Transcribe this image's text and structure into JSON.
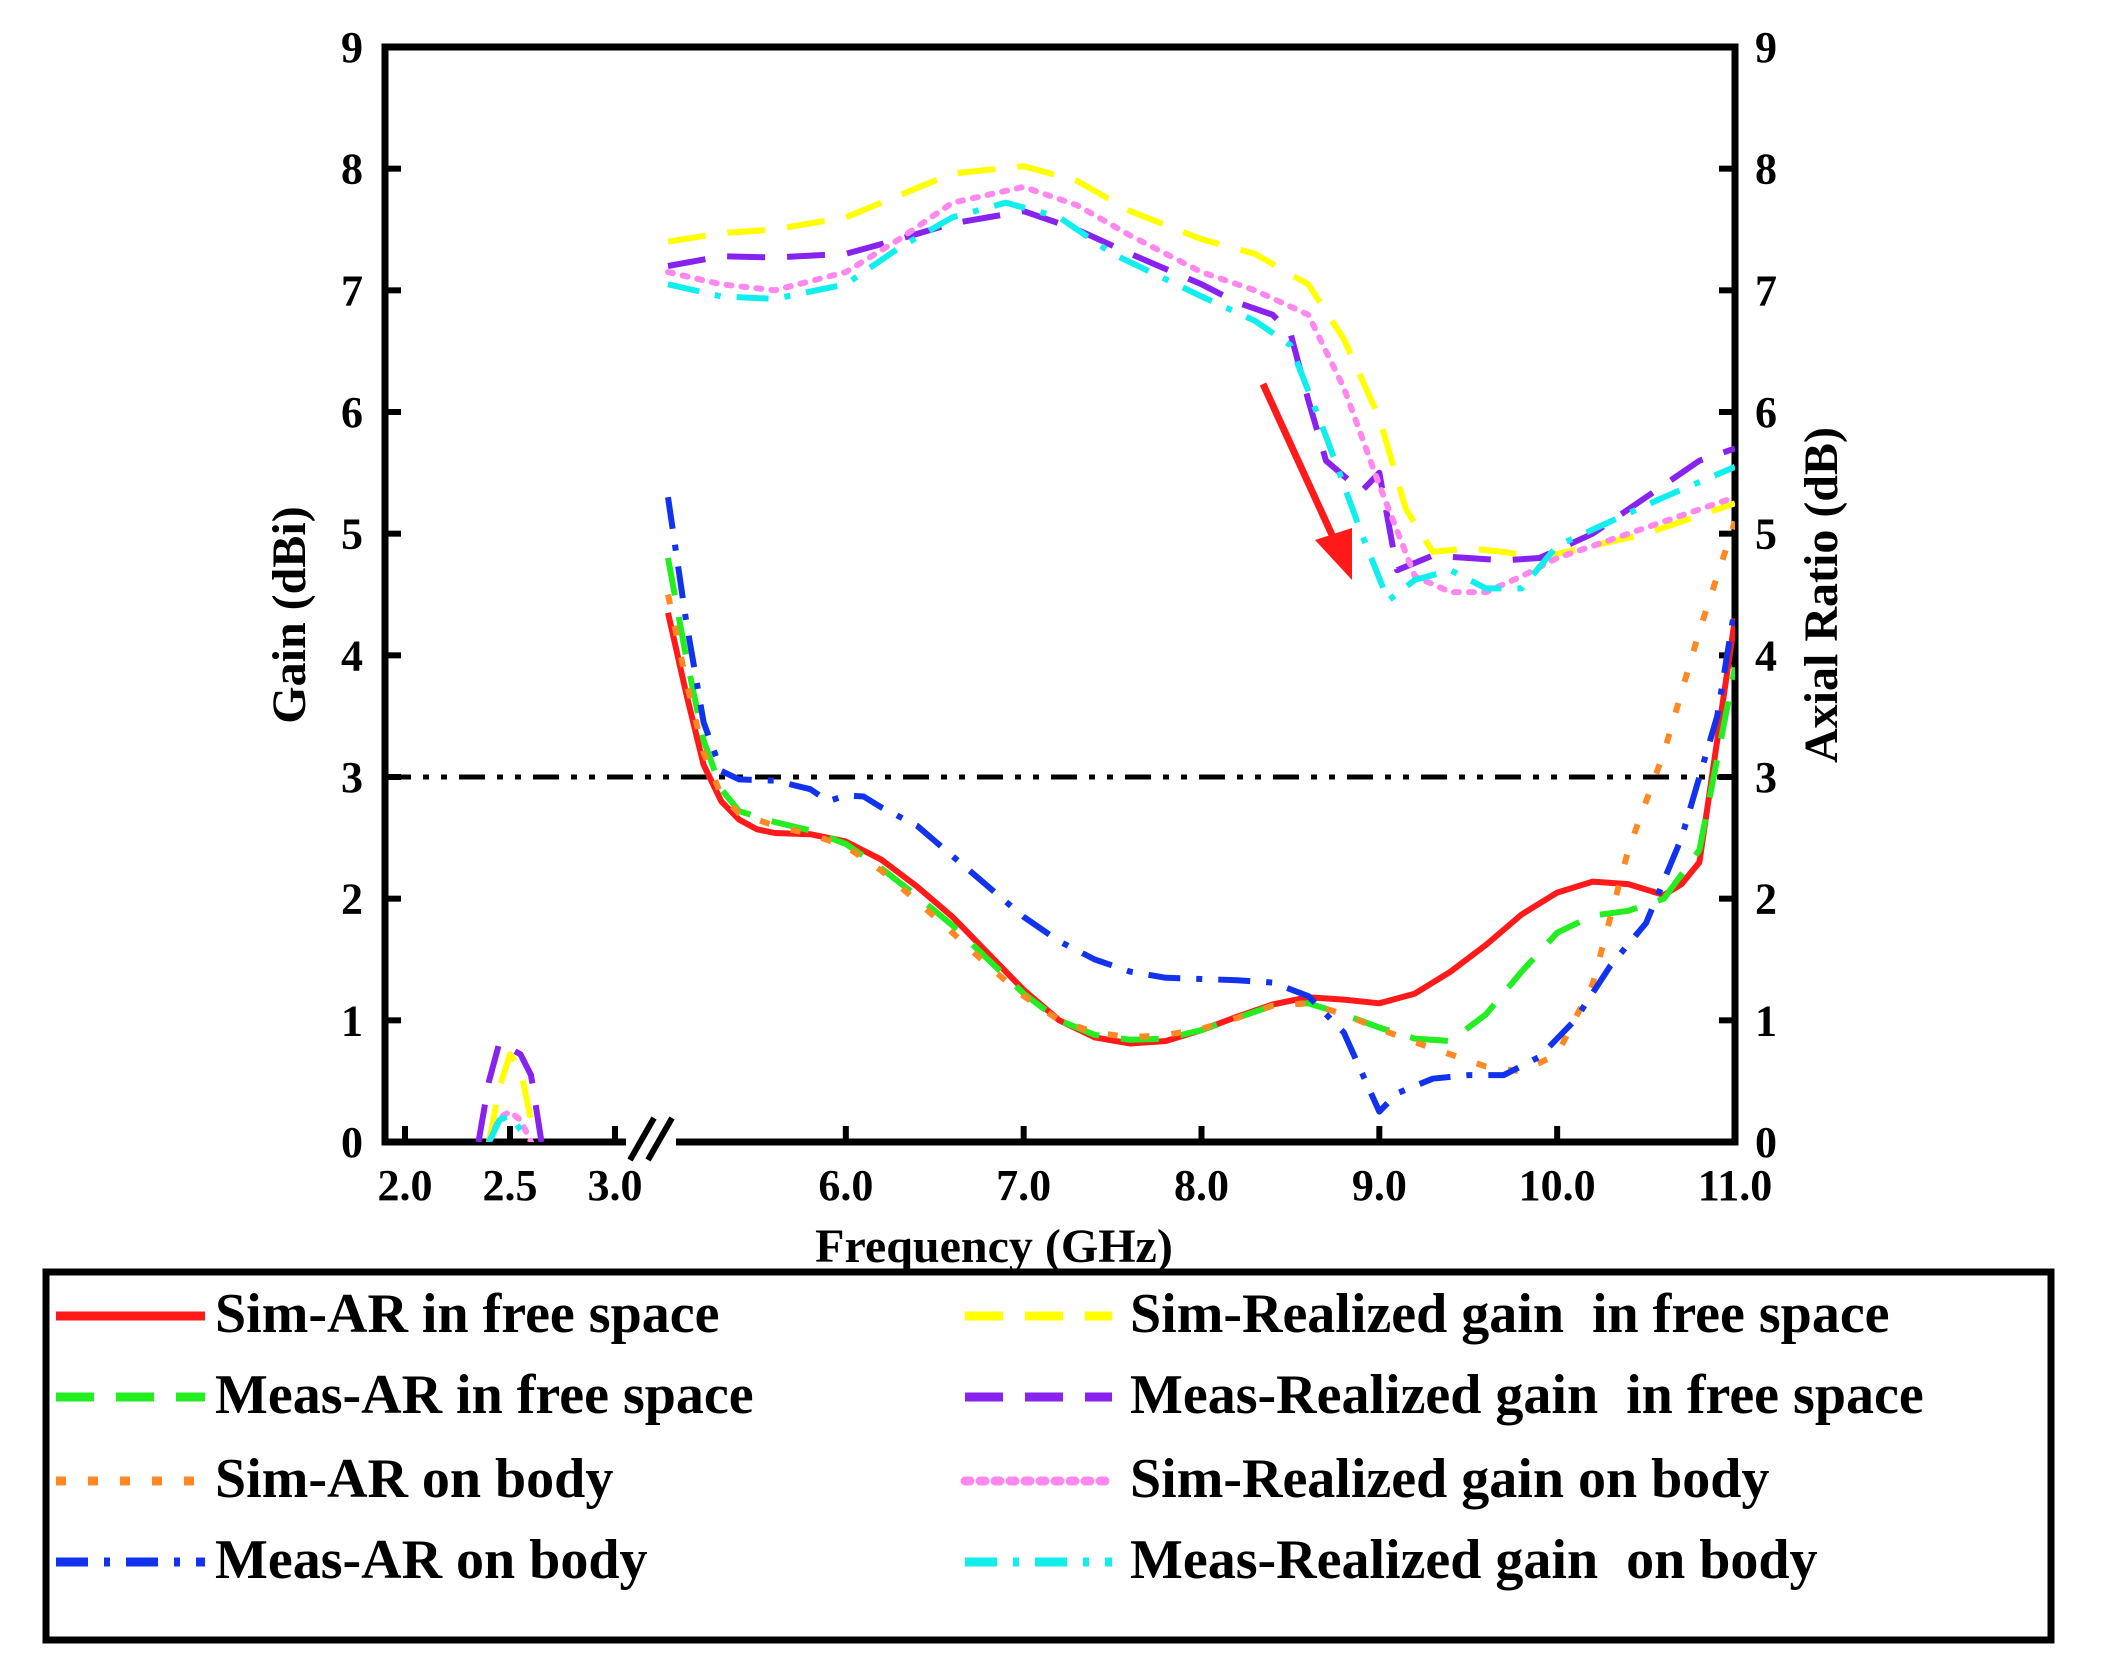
{
  "chart_data": {
    "type": "line",
    "x_axis": {
      "label": "Frequency (GHz)",
      "tick_labels": [
        "2.0",
        "2.5",
        "3.0",
        "6.0",
        "7.0",
        "8.0",
        "9.0",
        "10.0",
        "11.0"
      ],
      "tick_values": [
        2.0,
        2.5,
        3.0,
        6.0,
        7.0,
        8.0,
        9.0,
        10.0,
        11.0
      ],
      "axis_break": "between 3.0 and 5.0",
      "segments": [
        {
          "range": [
            2.0,
            3.0
          ]
        },
        {
          "range": [
            5.0,
            11.0
          ]
        }
      ]
    },
    "y_left": {
      "label": "Gain (dBi)",
      "range": [
        0,
        9
      ],
      "tick_labels": [
        "0",
        "1",
        "2",
        "3",
        "4",
        "5",
        "6",
        "7",
        "8",
        "9"
      ]
    },
    "y_right": {
      "label": "Axial Ratio (dB)",
      "range": [
        0,
        9
      ],
      "tick_labels": [
        "0",
        "1",
        "2",
        "3",
        "4",
        "5",
        "6",
        "7",
        "8",
        "9"
      ]
    },
    "reference_line": {
      "y": 3,
      "style": "dash-dot",
      "color": "#000000"
    },
    "annotation": {
      "type": "arrow",
      "color": "#ff1a1a",
      "meaning": "realized gain drop when placed on body"
    },
    "series": [
      {
        "name": "Sim-AR in free space",
        "axis": "right",
        "color": "#ff1a1a",
        "style": "solid",
        "width": 6,
        "points": [
          [
            5.0,
            4.35
          ],
          [
            5.1,
            3.7
          ],
          [
            5.2,
            3.1
          ],
          [
            5.3,
            2.8
          ],
          [
            5.4,
            2.65
          ],
          [
            5.5,
            2.57
          ],
          [
            5.6,
            2.54
          ],
          [
            5.8,
            2.53
          ],
          [
            6.0,
            2.47
          ],
          [
            6.2,
            2.32
          ],
          [
            6.4,
            2.1
          ],
          [
            6.6,
            1.85
          ],
          [
            6.8,
            1.55
          ],
          [
            7.0,
            1.25
          ],
          [
            7.2,
            1.0
          ],
          [
            7.4,
            0.86
          ],
          [
            7.6,
            0.81
          ],
          [
            7.8,
            0.83
          ],
          [
            8.0,
            0.92
          ],
          [
            8.2,
            1.03
          ],
          [
            8.4,
            1.13
          ],
          [
            8.6,
            1.19
          ],
          [
            8.8,
            1.17
          ],
          [
            9.0,
            1.14
          ],
          [
            9.2,
            1.22
          ],
          [
            9.4,
            1.4
          ],
          [
            9.6,
            1.62
          ],
          [
            9.8,
            1.87
          ],
          [
            10.0,
            2.05
          ],
          [
            10.2,
            2.14
          ],
          [
            10.4,
            2.12
          ],
          [
            10.6,
            2.03
          ],
          [
            10.7,
            2.12
          ],
          [
            10.8,
            2.3
          ],
          [
            10.9,
            3.3
          ],
          [
            11.0,
            4.3
          ]
        ]
      },
      {
        "name": "Meas-AR in free space",
        "axis": "right",
        "color": "#22ee22",
        "style": "long-dash",
        "width": 6,
        "points": [
          [
            5.0,
            4.8
          ],
          [
            5.1,
            4.0
          ],
          [
            5.2,
            3.3
          ],
          [
            5.3,
            2.9
          ],
          [
            5.4,
            2.72
          ],
          [
            5.6,
            2.63
          ],
          [
            5.8,
            2.56
          ],
          [
            6.0,
            2.45
          ],
          [
            6.2,
            2.25
          ],
          [
            6.4,
            2.02
          ],
          [
            6.6,
            1.78
          ],
          [
            6.8,
            1.5
          ],
          [
            7.0,
            1.22
          ],
          [
            7.2,
            1.0
          ],
          [
            7.4,
            0.88
          ],
          [
            7.6,
            0.84
          ],
          [
            7.8,
            0.85
          ],
          [
            8.0,
            0.92
          ],
          [
            8.2,
            1.02
          ],
          [
            8.4,
            1.12
          ],
          [
            8.6,
            1.14
          ],
          [
            8.8,
            1.05
          ],
          [
            9.0,
            0.94
          ],
          [
            9.2,
            0.85
          ],
          [
            9.4,
            0.83
          ],
          [
            9.6,
            1.05
          ],
          [
            9.8,
            1.4
          ],
          [
            10.0,
            1.72
          ],
          [
            10.2,
            1.86
          ],
          [
            10.4,
            1.9
          ],
          [
            10.6,
            2.0
          ],
          [
            10.8,
            2.4
          ],
          [
            11.0,
            3.9
          ]
        ]
      },
      {
        "name": "Sim-AR on body",
        "axis": "right",
        "color": "#ff8822",
        "style": "short-dash",
        "width": 6,
        "points": [
          [
            5.0,
            4.5
          ],
          [
            5.1,
            3.8
          ],
          [
            5.2,
            3.2
          ],
          [
            5.3,
            2.85
          ],
          [
            5.4,
            2.7
          ],
          [
            5.6,
            2.6
          ],
          [
            5.8,
            2.53
          ],
          [
            6.0,
            2.43
          ],
          [
            6.2,
            2.23
          ],
          [
            6.4,
            1.98
          ],
          [
            6.6,
            1.72
          ],
          [
            6.8,
            1.45
          ],
          [
            7.0,
            1.2
          ],
          [
            7.2,
            1.0
          ],
          [
            7.4,
            0.9
          ],
          [
            7.6,
            0.86
          ],
          [
            7.8,
            0.88
          ],
          [
            8.0,
            0.93
          ],
          [
            8.2,
            1.02
          ],
          [
            8.4,
            1.12
          ],
          [
            8.6,
            1.14
          ],
          [
            8.8,
            1.05
          ],
          [
            9.0,
            0.93
          ],
          [
            9.2,
            0.82
          ],
          [
            9.4,
            0.72
          ],
          [
            9.6,
            0.62
          ],
          [
            9.8,
            0.58
          ],
          [
            10.0,
            0.72
          ],
          [
            10.2,
            1.3
          ],
          [
            10.4,
            2.4
          ],
          [
            10.6,
            3.2
          ],
          [
            10.8,
            4.2
          ],
          [
            11.0,
            5.1
          ]
        ]
      },
      {
        "name": "Meas-AR on body",
        "axis": "right",
        "color": "#1133ee",
        "style": "dash-dot",
        "width": 6,
        "points": [
          [
            5.0,
            5.3
          ],
          [
            5.1,
            4.3
          ],
          [
            5.2,
            3.45
          ],
          [
            5.3,
            3.05
          ],
          [
            5.4,
            2.98
          ],
          [
            5.6,
            2.97
          ],
          [
            5.8,
            2.9
          ],
          [
            5.9,
            2.8
          ],
          [
            6.0,
            2.85
          ],
          [
            6.1,
            2.84
          ],
          [
            6.2,
            2.75
          ],
          [
            6.4,
            2.6
          ],
          [
            6.6,
            2.35
          ],
          [
            6.8,
            2.1
          ],
          [
            7.0,
            1.85
          ],
          [
            7.2,
            1.65
          ],
          [
            7.4,
            1.5
          ],
          [
            7.6,
            1.4
          ],
          [
            7.8,
            1.35
          ],
          [
            8.0,
            1.34
          ],
          [
            8.2,
            1.33
          ],
          [
            8.4,
            1.31
          ],
          [
            8.6,
            1.2
          ],
          [
            8.8,
            0.9
          ],
          [
            9.0,
            0.25
          ],
          [
            9.1,
            0.4
          ],
          [
            9.3,
            0.52
          ],
          [
            9.5,
            0.55
          ],
          [
            9.7,
            0.55
          ],
          [
            9.9,
            0.7
          ],
          [
            10.1,
            1.0
          ],
          [
            10.3,
            1.45
          ],
          [
            10.5,
            1.8
          ],
          [
            10.7,
            2.5
          ],
          [
            10.9,
            3.5
          ],
          [
            11.0,
            4.4
          ]
        ]
      },
      {
        "name": "Sim-Realized gain  in free space",
        "axis": "left",
        "color": "#ffff00",
        "style": "long-dash",
        "width": 6,
        "points": [
          [
            2.4,
            0.0
          ],
          [
            2.45,
            0.45
          ],
          [
            2.5,
            0.72
          ],
          [
            2.55,
            0.6
          ],
          [
            2.6,
            0.18
          ],
          [
            5.0,
            7.4
          ],
          [
            5.3,
            7.47
          ],
          [
            5.6,
            7.5
          ],
          [
            6.0,
            7.6
          ],
          [
            6.3,
            7.78
          ],
          [
            6.6,
            7.96
          ],
          [
            7.0,
            8.02
          ],
          [
            7.3,
            7.9
          ],
          [
            7.6,
            7.65
          ],
          [
            8.0,
            7.42
          ],
          [
            8.3,
            7.3
          ],
          [
            8.6,
            7.05
          ],
          [
            8.8,
            6.6
          ],
          [
            9.0,
            5.95
          ],
          [
            9.15,
            5.2
          ],
          [
            9.3,
            4.85
          ],
          [
            9.5,
            4.88
          ],
          [
            9.7,
            4.85
          ],
          [
            9.9,
            4.8
          ],
          [
            10.2,
            4.9
          ],
          [
            10.5,
            5.0
          ],
          [
            10.8,
            5.15
          ],
          [
            11.0,
            5.25
          ]
        ]
      },
      {
        "name": "Meas-Realized gain  in free space",
        "axis": "left",
        "color": "#8822ee",
        "style": "long-dash",
        "width": 6,
        "points": [
          [
            2.35,
            0.0
          ],
          [
            2.4,
            0.5
          ],
          [
            2.45,
            0.82
          ],
          [
            2.55,
            0.72
          ],
          [
            2.6,
            0.55
          ],
          [
            2.65,
            0.0
          ],
          [
            5.0,
            7.2
          ],
          [
            5.3,
            7.28
          ],
          [
            5.6,
            7.27
          ],
          [
            6.0,
            7.3
          ],
          [
            6.3,
            7.42
          ],
          [
            6.6,
            7.55
          ],
          [
            7.0,
            7.65
          ],
          [
            7.3,
            7.5
          ],
          [
            7.6,
            7.3
          ],
          [
            8.0,
            7.05
          ],
          [
            8.2,
            6.9
          ],
          [
            8.4,
            6.8
          ],
          [
            8.5,
            6.65
          ],
          [
            8.6,
            6.1
          ],
          [
            8.7,
            5.6
          ],
          [
            8.9,
            5.35
          ],
          [
            9.0,
            5.5
          ],
          [
            9.1,
            4.7
          ],
          [
            9.3,
            4.82
          ],
          [
            9.5,
            4.8
          ],
          [
            9.7,
            4.78
          ],
          [
            9.9,
            4.8
          ],
          [
            10.2,
            5.0
          ],
          [
            10.5,
            5.3
          ],
          [
            10.8,
            5.6
          ],
          [
            11.0,
            5.7
          ]
        ]
      },
      {
        "name": "Sim-Realized gain on body",
        "axis": "left",
        "color": "#ff88ee",
        "style": "dotted",
        "width": 6,
        "points": [
          [
            2.4,
            0.0
          ],
          [
            2.45,
            0.2
          ],
          [
            2.5,
            0.25
          ],
          [
            2.55,
            0.18
          ],
          [
            2.6,
            0.0
          ],
          [
            5.0,
            7.15
          ],
          [
            5.3,
            7.05
          ],
          [
            5.6,
            7.0
          ],
          [
            6.0,
            7.15
          ],
          [
            6.3,
            7.42
          ],
          [
            6.6,
            7.72
          ],
          [
            7.0,
            7.85
          ],
          [
            7.3,
            7.7
          ],
          [
            7.6,
            7.45
          ],
          [
            8.0,
            7.15
          ],
          [
            8.3,
            7.0
          ],
          [
            8.6,
            6.8
          ],
          [
            8.8,
            6.2
          ],
          [
            9.0,
            5.4
          ],
          [
            9.2,
            4.65
          ],
          [
            9.4,
            4.52
          ],
          [
            9.6,
            4.52
          ],
          [
            9.8,
            4.65
          ],
          [
            10.0,
            4.8
          ],
          [
            10.3,
            4.95
          ],
          [
            10.6,
            5.1
          ],
          [
            11.0,
            5.3
          ]
        ]
      },
      {
        "name": "Meas-Realized gain  on body",
        "axis": "left",
        "color": "#11eeee",
        "style": "dash-dot",
        "width": 6,
        "points": [
          [
            2.4,
            0.0
          ],
          [
            2.45,
            0.18
          ],
          [
            2.5,
            0.22
          ],
          [
            2.55,
            0.1
          ],
          [
            2.6,
            0.0
          ],
          [
            5.0,
            7.05
          ],
          [
            5.3,
            6.95
          ],
          [
            5.6,
            6.93
          ],
          [
            6.0,
            7.05
          ],
          [
            6.3,
            7.35
          ],
          [
            6.6,
            7.6
          ],
          [
            6.9,
            7.72
          ],
          [
            7.2,
            7.6
          ],
          [
            7.5,
            7.3
          ],
          [
            8.0,
            6.95
          ],
          [
            8.3,
            6.75
          ],
          [
            8.5,
            6.55
          ],
          [
            8.7,
            5.8
          ],
          [
            8.9,
            5.0
          ],
          [
            9.05,
            4.45
          ],
          [
            9.2,
            4.62
          ],
          [
            9.4,
            4.7
          ],
          [
            9.6,
            4.55
          ],
          [
            9.8,
            4.55
          ],
          [
            10.0,
            4.9
          ],
          [
            10.3,
            5.1
          ],
          [
            10.6,
            5.3
          ],
          [
            11.0,
            5.55
          ]
        ]
      }
    ]
  }
}
